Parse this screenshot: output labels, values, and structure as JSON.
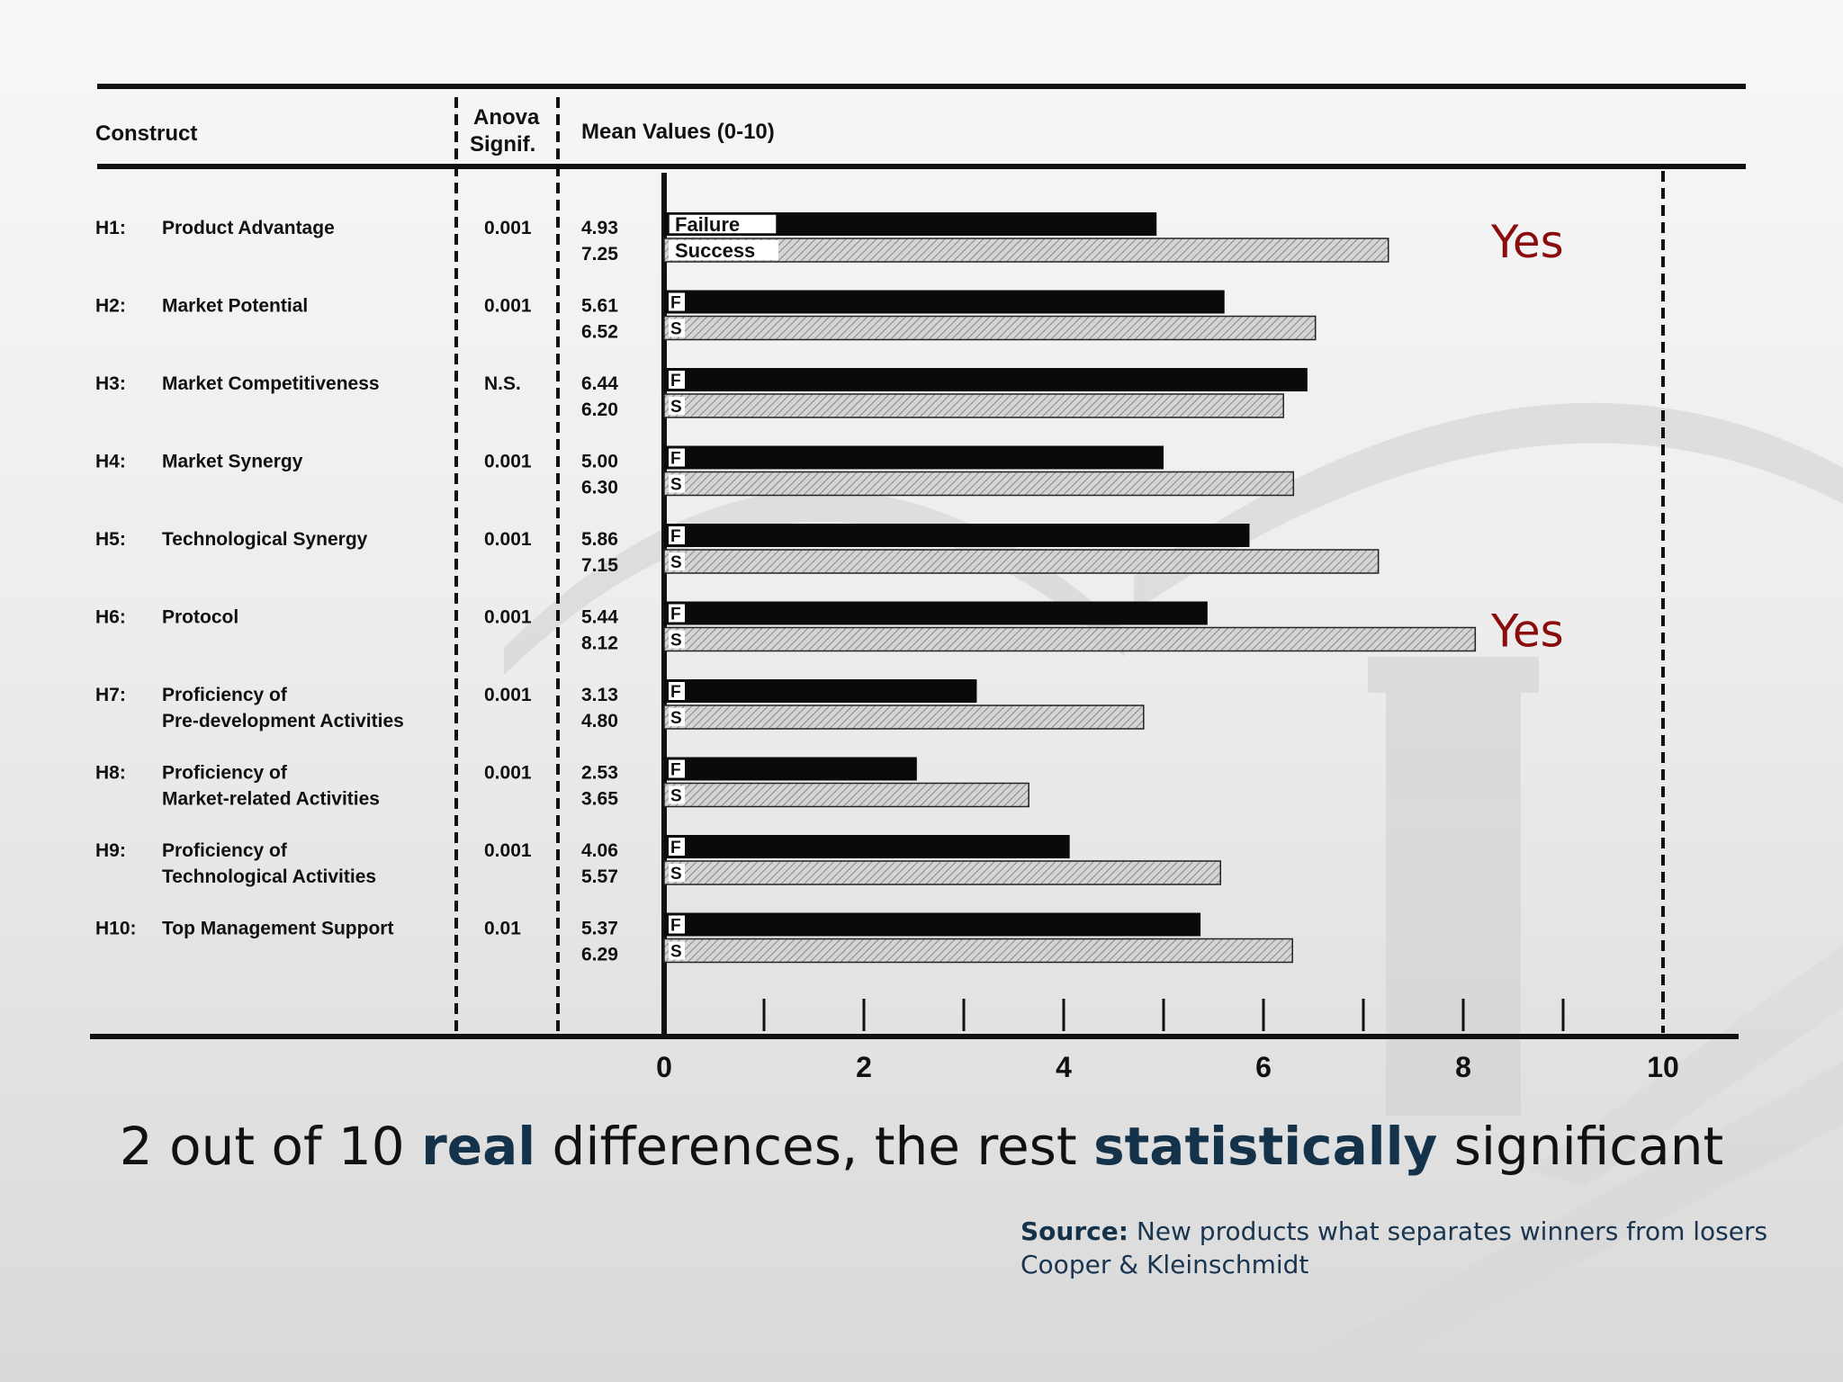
{
  "table": {
    "col_construct": "Construct",
    "col_anova_1": "Anova",
    "col_anova_2": "Signif.",
    "col_means": "Mean Values (0-10)"
  },
  "rows": [
    {
      "code": "H1:",
      "name": [
        "Product Advantage"
      ],
      "sig": "0.001",
      "failure_label": "4.93",
      "success_label": "7.25"
    },
    {
      "code": "H2:",
      "name": [
        "Market Potential"
      ],
      "sig": "0.001",
      "failure_label": "5.61",
      "success_label": "6.52"
    },
    {
      "code": "H3:",
      "name": [
        "Market Competitiveness"
      ],
      "sig": "N.S.",
      "failure_label": "6.44",
      "success_label": "6.20"
    },
    {
      "code": "H4:",
      "name": [
        "Market Synergy"
      ],
      "sig": "0.001",
      "failure_label": "5.00",
      "success_label": "6.30"
    },
    {
      "code": "H5:",
      "name": [
        "Technological Synergy"
      ],
      "sig": "0.001",
      "failure_label": "5.86",
      "success_label": "7.15"
    },
    {
      "code": "H6:",
      "name": [
        "Protocol"
      ],
      "sig": "0.001",
      "failure_label": "5.44",
      "success_label": "8.12"
    },
    {
      "code": "H7:",
      "name": [
        "Proficiency of",
        "Pre-development Activities"
      ],
      "sig": "0.001",
      "failure_label": "3.13",
      "success_label": "4.80"
    },
    {
      "code": "H8:",
      "name": [
        "Proficiency of",
        "Market-related Activities"
      ],
      "sig": "0.001",
      "failure_label": "2.53",
      "success_label": "3.65"
    },
    {
      "code": "H9:",
      "name": [
        "Proficiency of",
        "Technological Activities"
      ],
      "sig": "0.001",
      "failure_label": "4.06",
      "success_label": "5.57"
    },
    {
      "code": "H10:",
      "name": [
        "Top Management Support"
      ],
      "sig": "0.01",
      "failure_label": "5.37",
      "success_label": "6.29"
    }
  ],
  "chart_data": {
    "type": "bar",
    "orientation": "horizontal",
    "categories": [
      "H1: Product Advantage",
      "H2: Market Potential",
      "H3: Market Competitiveness",
      "H4: Market Synergy",
      "H5: Technological Synergy",
      "H6: Protocol",
      "H7: Proficiency of Pre-development Activities",
      "H8: Proficiency of Market-related Activities",
      "H9: Proficiency of Technological Activities",
      "H10: Top Management Support"
    ],
    "series": [
      {
        "name": "Failure",
        "short": "F",
        "values": [
          4.93,
          5.61,
          6.44,
          5.0,
          5.86,
          5.44,
          3.13,
          2.53,
          4.06,
          5.37
        ]
      },
      {
        "name": "Success",
        "short": "S",
        "values": [
          7.25,
          6.52,
          6.2,
          6.3,
          7.15,
          8.12,
          4.8,
          3.65,
          5.57,
          6.29
        ]
      }
    ],
    "xlim": [
      0,
      10
    ],
    "x_ticks": [
      0,
      2,
      4,
      6,
      8,
      10
    ],
    "xlabel": "Mean Values (0-10)",
    "grid": false,
    "annotations": [
      {
        "text": "Yes",
        "row": 0
      },
      {
        "text": "Yes",
        "row": 5
      }
    ]
  },
  "caption": {
    "part1": "2 out of 10 ",
    "bold1": "real",
    "part2": " differences, the rest ",
    "bold2": "statistically",
    "part3": " significant"
  },
  "source": {
    "label": "Source:",
    "line1": " New products what separates winners from losers",
    "line2": "Cooper & Kleinschmidt"
  },
  "colors": {
    "failure_bar": "#0a0a0a",
    "success_bar": "#d4d4d4",
    "yes_text": "#8b0c0c",
    "caption_bold": "#14334a"
  }
}
